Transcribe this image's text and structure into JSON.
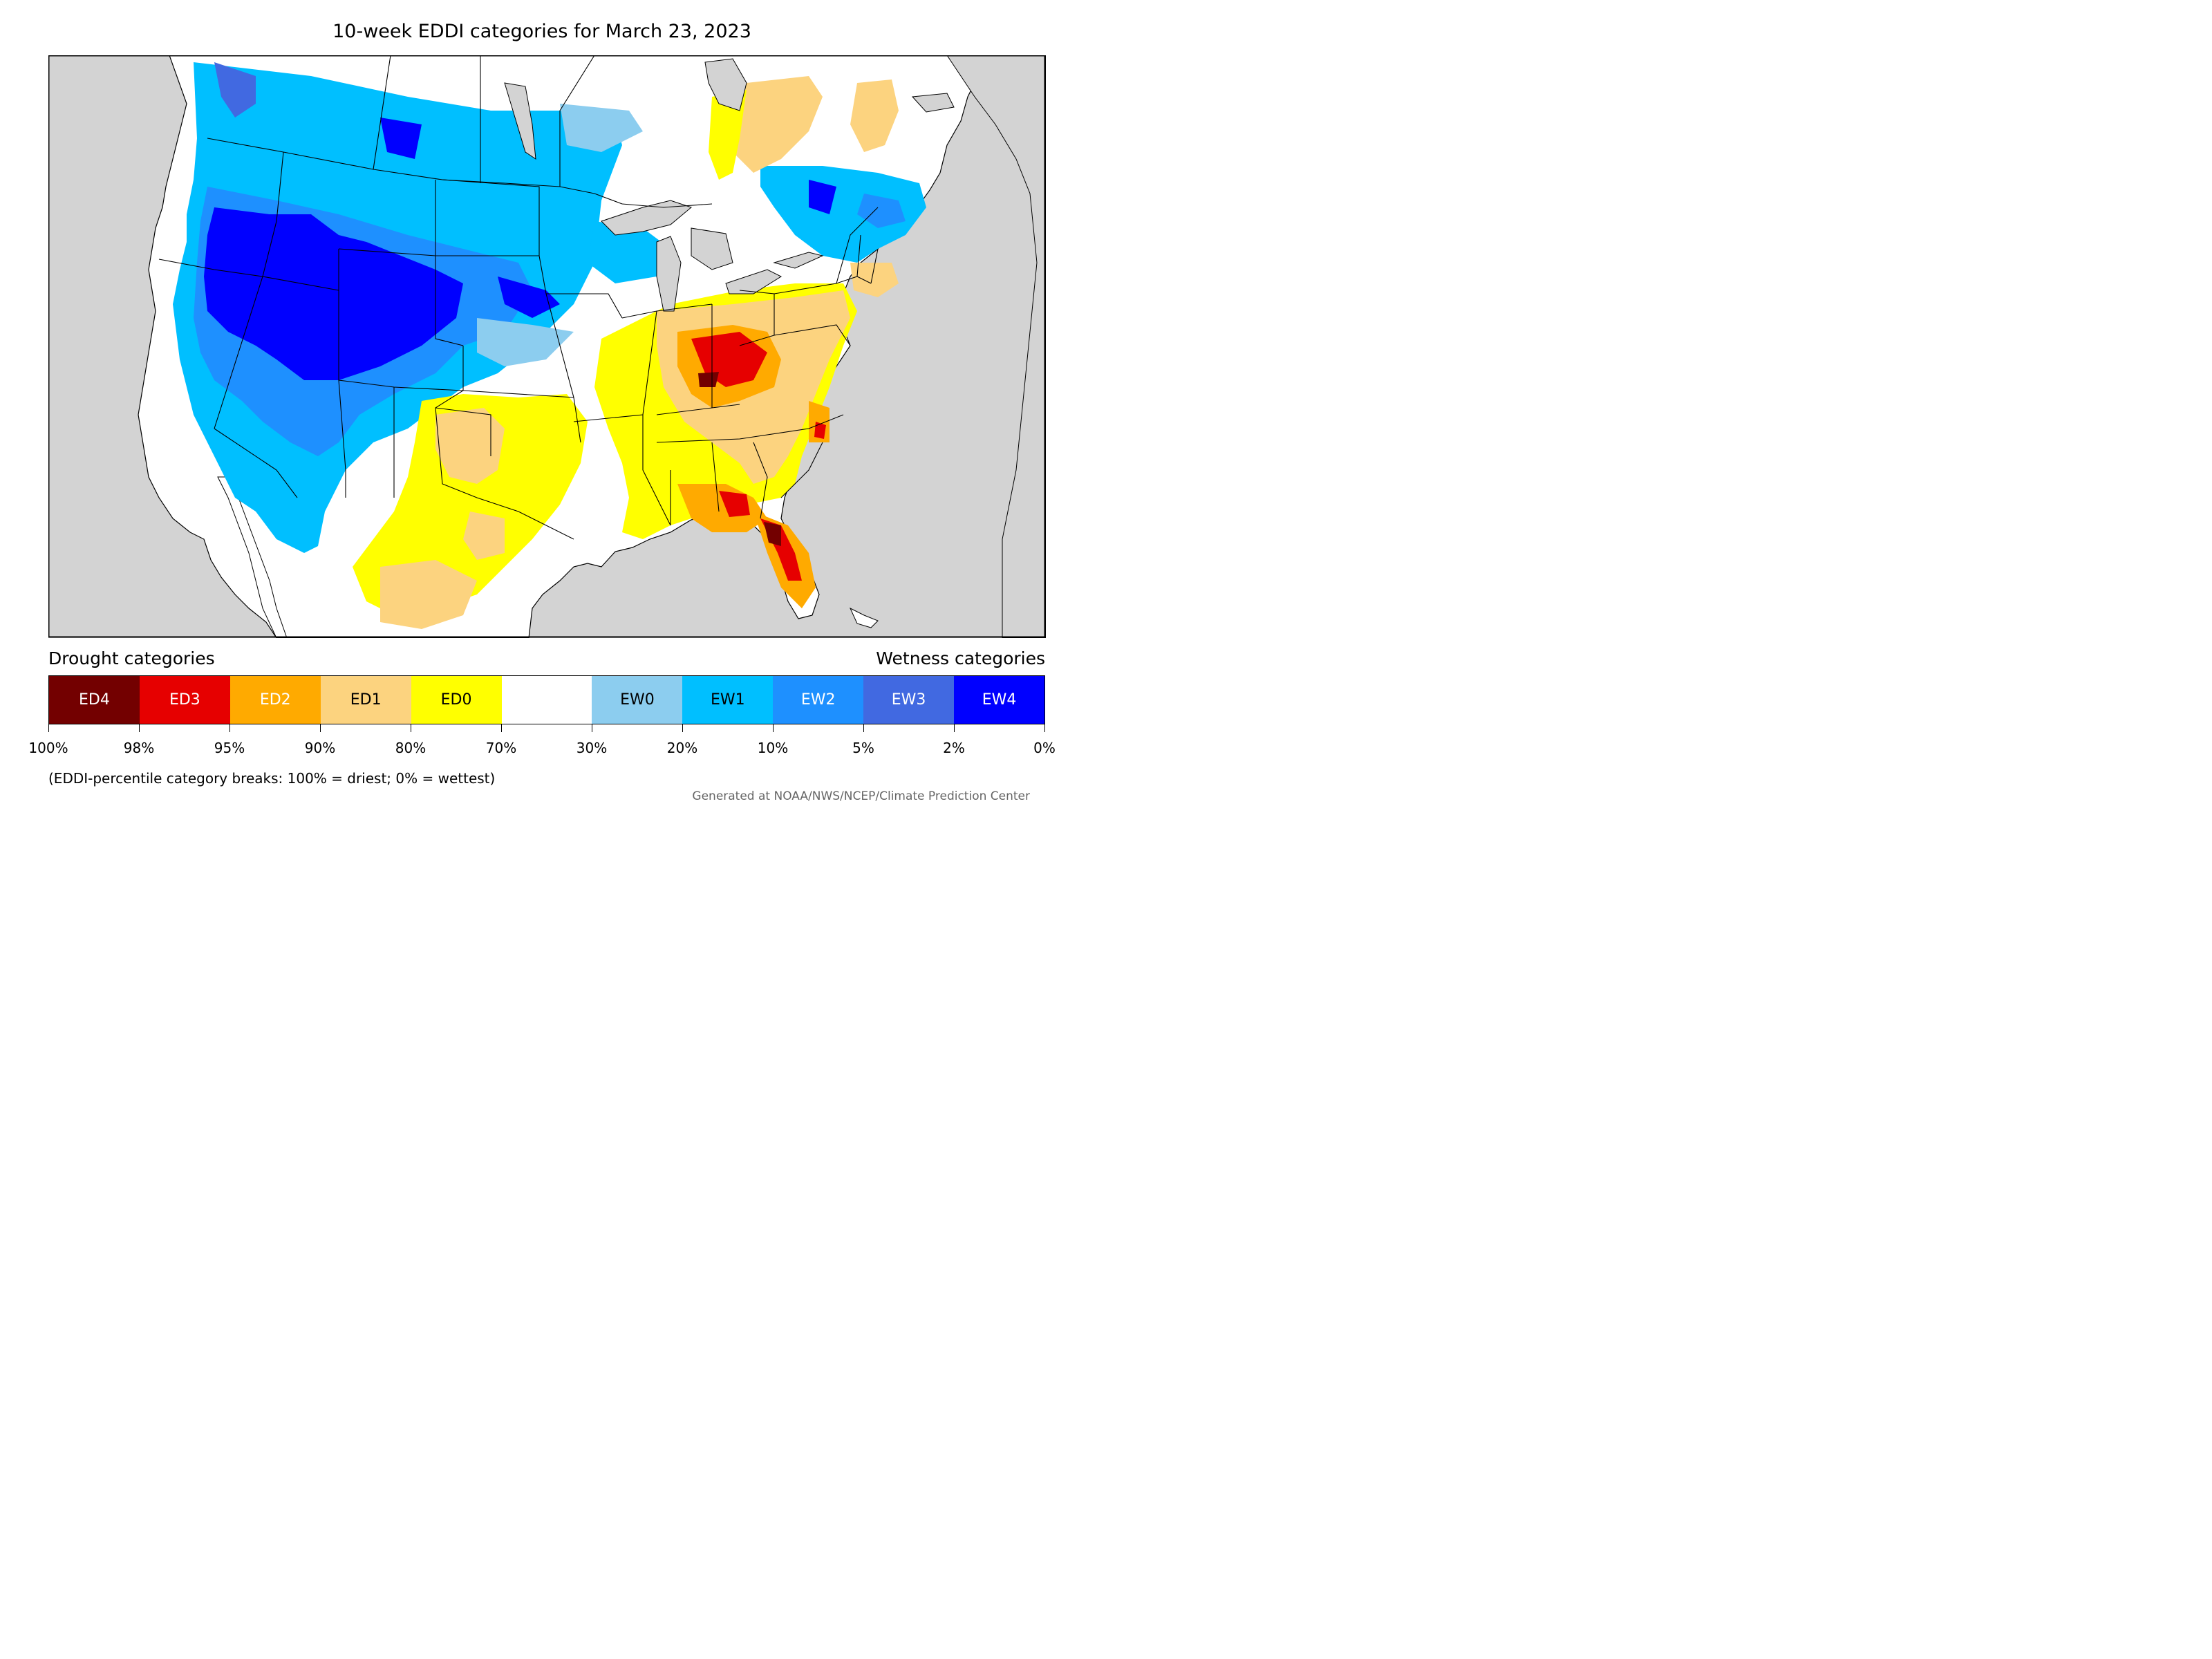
{
  "title": "10-week EDDI categories for March 23, 2023",
  "legend": {
    "drought_heading": "Drought categories",
    "wetness_heading": "Wetness categories",
    "categories": [
      {
        "label": "ED4",
        "color": "#730000",
        "text_color": "#ffffff"
      },
      {
        "label": "ED3",
        "color": "#e60000",
        "text_color": "#ffffff"
      },
      {
        "label": "ED2",
        "color": "#ffaa00",
        "text_color": "#ffffff"
      },
      {
        "label": "ED1",
        "color": "#fcd37f",
        "text_color": "#000000"
      },
      {
        "label": "ED0",
        "color": "#ffff00",
        "text_color": "#000000"
      },
      {
        "label": "",
        "color": "#ffffff",
        "text_color": "#000000"
      },
      {
        "label": "EW0",
        "color": "#8ccdef",
        "text_color": "#000000"
      },
      {
        "label": "EW1",
        "color": "#00bfff",
        "text_color": "#000000"
      },
      {
        "label": "EW2",
        "color": "#1e90ff",
        "text_color": "#ffffff"
      },
      {
        "label": "EW3",
        "color": "#4169e1",
        "text_color": "#ffffff"
      },
      {
        "label": "EW4",
        "color": "#0000ff",
        "text_color": "#ffffff"
      }
    ],
    "tick_labels": [
      "100%",
      "98%",
      "95%",
      "90%",
      "80%",
      "70%",
      "30%",
      "20%",
      "10%",
      "5%",
      "2%",
      "0%"
    ]
  },
  "footnote": "(EDDI-percentile category breaks: 100% = driest; 0% = wettest)",
  "credit": "Generated at NOAA/NWS/NCEP/Climate Prediction Center",
  "map": {
    "ocean_color": "#d3d3d3",
    "land_color": "#ffffff"
  }
}
